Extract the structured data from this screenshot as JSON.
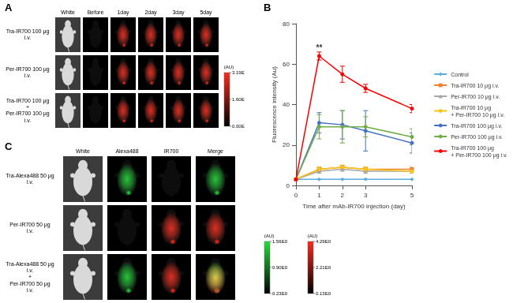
{
  "panel_a": {
    "label": "A",
    "columns": [
      "White",
      "Before",
      "1day",
      "2day",
      "3day",
      "5day"
    ],
    "rows": [
      "Tra-IR700 100 μg\ni.v.",
      "Per-IR700 100 μg\ni.v.",
      "Tra-IR700 100 μg\n+\nPer-IR700 100 μg\ni.v."
    ],
    "colorbar": {
      "title": "(AU)",
      "color": "#ff2a1a",
      "range": [
        0,
        3.19
      ],
      "ticks": [
        {
          "value": 3.19,
          "label": "3.19E"
        },
        {
          "value": 1.6,
          "label": "1.60E"
        },
        {
          "value": 0,
          "label": "0.00E"
        }
      ]
    }
  },
  "chart_data": {
    "type": "line",
    "title": "B",
    "x_label": "Time after mAb-IR700 injection (day)",
    "y_label": "Fluorescence intensity (Au)",
    "x": [
      0,
      1,
      2,
      3,
      5
    ],
    "xlim": [
      0,
      5
    ],
    "xticks": [
      0,
      1,
      2,
      3,
      5
    ],
    "ylim": [
      0,
      80
    ],
    "yticks": [
      0,
      20,
      40,
      60,
      80
    ],
    "grid": false,
    "legend": "right",
    "annotations": [
      {
        "text": "**",
        "x": 1,
        "y": 68
      }
    ],
    "series": [
      {
        "name": "Control",
        "color": "#5aaee0",
        "marker": "diamond",
        "values": [
          3,
          3,
          3,
          3,
          3
        ],
        "errors": [
          0,
          0,
          0,
          0,
          0
        ]
      },
      {
        "name": "Tra-IR700 10 μg i.v.",
        "color": "#f0812f",
        "marker": "square",
        "values": [
          3,
          8,
          9,
          8,
          8
        ],
        "errors": [
          0,
          1,
          1,
          1,
          1
        ]
      },
      {
        "name": "Per-IR700 10 μg i.v.",
        "color": "#a5a5a5",
        "marker": "triangle",
        "values": [
          3,
          7,
          8,
          7,
          7
        ],
        "errors": [
          0,
          1,
          1,
          1,
          1
        ]
      },
      {
        "name": "Tra-IR700 10 μg\n+ Per-IR700 10 μg i.v.",
        "color": "#f5c518",
        "marker": "circle",
        "values": [
          3,
          8,
          9,
          8,
          7
        ],
        "errors": [
          0,
          1,
          1,
          1,
          1
        ]
      },
      {
        "name": "Tra-IR700 100 μg i.v.",
        "color": "#4472c4",
        "marker": "circle",
        "values": [
          3,
          31,
          30,
          27,
          21
        ],
        "errors": [
          0,
          5,
          7,
          10,
          5
        ]
      },
      {
        "name": "Per-IR700 100 μg i.v.",
        "color": "#70ad47",
        "marker": "circle",
        "values": [
          3,
          29,
          29,
          29,
          24
        ],
        "errors": [
          0,
          6,
          8,
          5,
          4
        ]
      },
      {
        "name": "Tra-IR700 100 μg\n+ Per-IR700 100 μg i.v.",
        "color": "#ff0000",
        "marker": "circle",
        "values": [
          3,
          64,
          55,
          48,
          38
        ],
        "errors": [
          0,
          2,
          4,
          2,
          2
        ]
      }
    ]
  },
  "panel_c": {
    "label": "C",
    "columns": [
      "White",
      "Alexa488",
      "IR700",
      "Merge"
    ],
    "rows": [
      "Tra-Alexa488 50 μg\ni.v.",
      "Per-IR700 50 μg\ni.v.",
      "Tra-Alexa488 50 μg\ni.v.\n+\nPer-IR700 50 μg\ni.v."
    ],
    "colorbars": [
      {
        "title": "(AU)",
        "color": "#22e03a",
        "range": [
          0.23,
          1.56
        ],
        "ticks": [
          {
            "value": 1.56,
            "label": "1.56E0"
          },
          {
            "value": 0.9,
            "label": "0.90E0"
          },
          {
            "value": 0.23,
            "label": "0.23E0"
          }
        ]
      },
      {
        "title": "(AU)",
        "color": "#ff2a1a",
        "range": [
          0.13,
          4.29
        ],
        "ticks": [
          {
            "value": 4.29,
            "label": "4.29E0"
          },
          {
            "value": 2.21,
            "label": "2.21E0"
          },
          {
            "value": 0.13,
            "label": "0.13E0"
          }
        ]
      }
    ]
  }
}
